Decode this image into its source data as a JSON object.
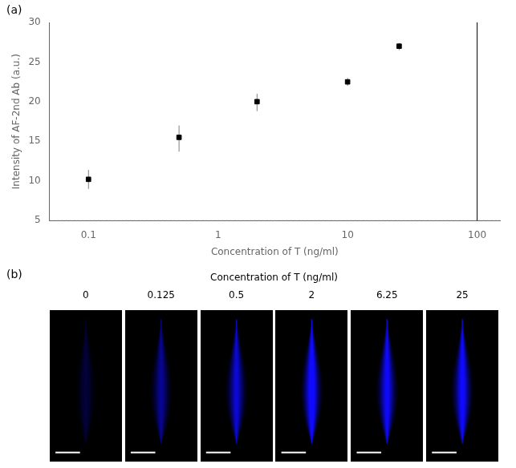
{
  "chart_data": [
    {
      "type": "scatter",
      "x": [
        0.1,
        0.5,
        2,
        10,
        25
      ],
      "values": [
        10.2,
        15.5,
        20.0,
        22.5,
        27.0
      ],
      "error_lower": [
        1.2,
        1.8,
        1.2,
        0.5,
        0.5
      ],
      "error_upper": [
        1.2,
        1.5,
        1.0,
        0.5,
        0.4
      ],
      "xlabel": "Concentration of T (ng/ml)",
      "ylabel": "Intensity of AF-2nd Ab (a.u.)",
      "xlim": [
        0.05,
        150
      ],
      "ylim": [
        5,
        30
      ],
      "xticks": [
        0.1,
        1,
        10,
        100
      ],
      "yticks": [
        5,
        10,
        15,
        20,
        25,
        30
      ],
      "log": "x",
      "grid": false,
      "marker": "square",
      "color": "black",
      "hlines": [
        5
      ],
      "vlines": [
        100
      ],
      "annotations": [
        "(a)"
      ]
    },
    {
      "type": "image",
      "title": "Concentration of T (ng/ml)",
      "categories": [
        "0",
        "0.125",
        "0.5",
        "2",
        "6.25",
        "25"
      ],
      "values": [
        0.18,
        0.45,
        0.65,
        0.9,
        0.78,
        0.82
      ],
      "tick_labels": "x",
      "annotations": [
        "(b)"
      ]
    }
  ]
}
